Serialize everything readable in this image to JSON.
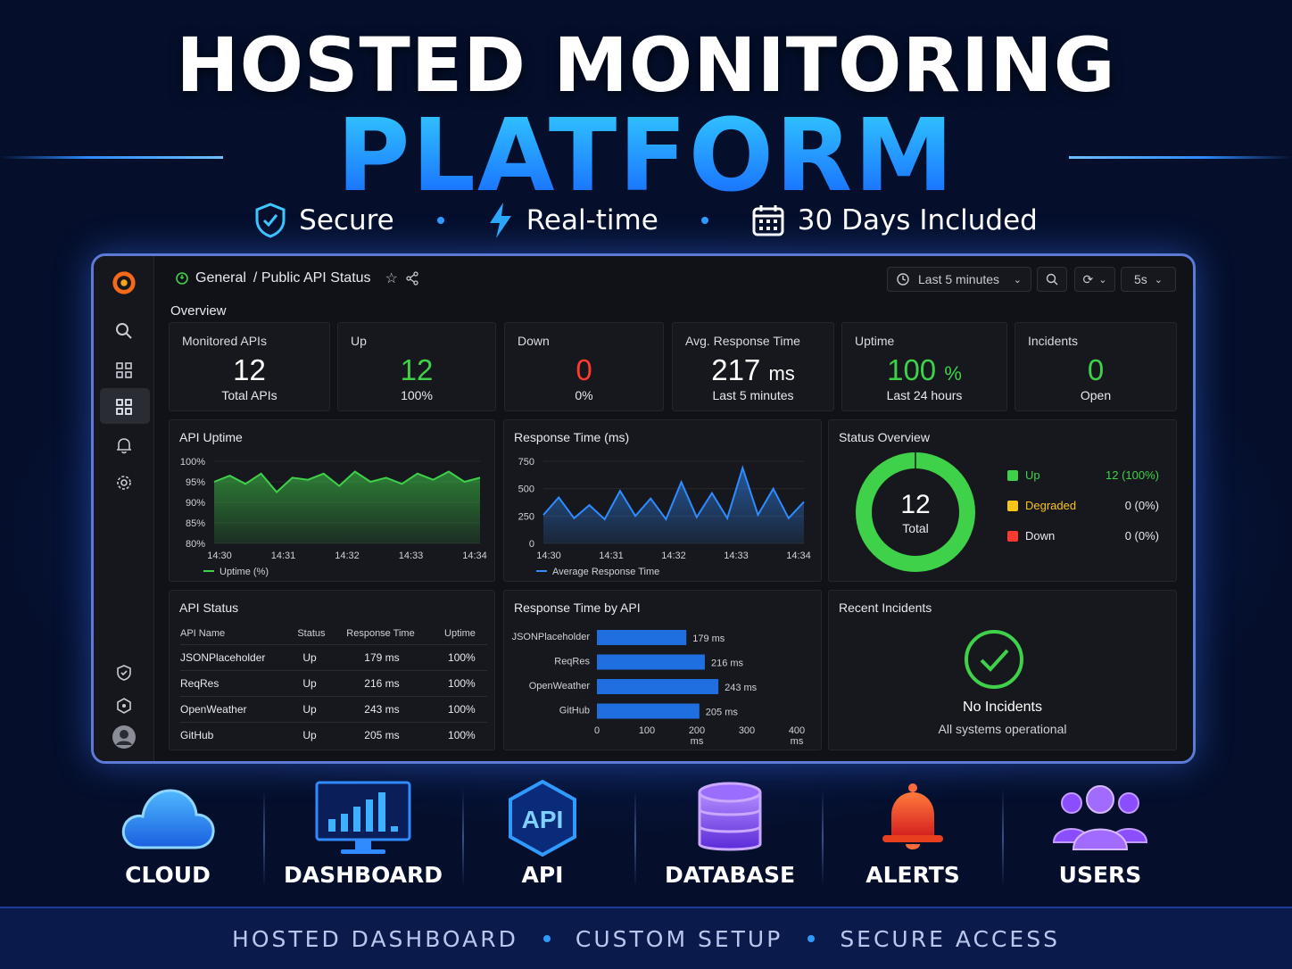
{
  "hero": {
    "title_line1": "HOSTED MONITORING",
    "title_line2": "PLATFORM",
    "features": [
      "Secure",
      "Real-time",
      "30 Days Included"
    ]
  },
  "dashboard": {
    "breadcrumb": {
      "folder": "General",
      "title": "/ Public API Status"
    },
    "time_range": "Last 5 minutes",
    "refresh": "5s",
    "overview_label": "Overview",
    "stats": [
      {
        "label": "Monitored APIs",
        "value": "12",
        "unit": "",
        "sub": "Total APIs",
        "color": "#ffffff"
      },
      {
        "label": "Up",
        "value": "12",
        "unit": "",
        "sub": "100%",
        "color": "#3fd14a"
      },
      {
        "label": "Down",
        "value": "0",
        "unit": "",
        "sub": "0%",
        "color": "#ff3b2f"
      },
      {
        "label": "Avg. Response Time",
        "value": "217",
        "unit": "ms",
        "sub": "Last 5 minutes",
        "color": "#ffffff"
      },
      {
        "label": "Uptime",
        "value": "100",
        "unit": "%",
        "sub": "Last 24 hours",
        "color": "#3fd14a"
      },
      {
        "label": "Incidents",
        "value": "0",
        "unit": "",
        "sub": "Open",
        "color": "#3fd14a"
      }
    ],
    "uptime_panel": {
      "title": "API Uptime",
      "legend": "Uptime (%)",
      "y_ticks": [
        "100%",
        "95%",
        "90%",
        "85%",
        "80%"
      ],
      "x_ticks": [
        "14:30",
        "14:31",
        "14:32",
        "14:33",
        "14:34"
      ]
    },
    "response_panel": {
      "title": "Response Time (ms)",
      "legend": "Average Response Time",
      "y_ticks": [
        "750",
        "500",
        "250",
        "0"
      ],
      "x_ticks": [
        "14:30",
        "14:31",
        "14:32",
        "14:33",
        "14:34"
      ]
    },
    "status_panel": {
      "title": "Status Overview",
      "center_value": "12",
      "center_label": "Total",
      "items": [
        {
          "name": "Up",
          "value": "12 (100%)",
          "color": "#3fd14a"
        },
        {
          "name": "Degraded",
          "value": "0 (0%)",
          "color": "#f5c518"
        },
        {
          "name": "Down",
          "value": "0 (0%)",
          "color": "#ff3b2f"
        }
      ]
    },
    "table_panel": {
      "title": "API Status",
      "columns": [
        "API Name",
        "Status",
        "Response Time",
        "Uptime"
      ],
      "rows": [
        [
          "JSONPlaceholder",
          "Up",
          "179 ms",
          "100%"
        ],
        [
          "ReqRes",
          "Up",
          "216 ms",
          "100%"
        ],
        [
          "OpenWeather",
          "Up",
          "243 ms",
          "100%"
        ],
        [
          "GitHub",
          "Up",
          "205 ms",
          "100%"
        ]
      ]
    },
    "bar_panel": {
      "title": "Response Time by API",
      "x_ticks": [
        "0",
        "100",
        "200",
        "300",
        "400"
      ],
      "x_unit": "ms"
    },
    "incidents_panel": {
      "title": "Recent Incidents",
      "message": "No Incidents",
      "sub": "All systems operational"
    }
  },
  "chart_data": [
    {
      "type": "area",
      "title": "API Uptime",
      "ylabel": "",
      "series": [
        {
          "name": "Uptime (%)",
          "color": "#3fd14a",
          "x": [
            "14:30:00",
            "14:30:15",
            "14:30:30",
            "14:30:45",
            "14:31:00",
            "14:31:15",
            "14:31:30",
            "14:31:45",
            "14:32:00",
            "14:32:15",
            "14:32:30",
            "14:32:45",
            "14:33:00",
            "14:33:15",
            "14:33:30",
            "14:33:45",
            "14:34:00",
            "14:34:15"
          ],
          "values": [
            95,
            96.5,
            94.5,
            97,
            92.5,
            96,
            95.5,
            97,
            94,
            97.5,
            95,
            96,
            94.5,
            97,
            95.5,
            97.5,
            95,
            96
          ]
        }
      ],
      "ylim": [
        80,
        100
      ]
    },
    {
      "type": "area",
      "title": "Response Time (ms)",
      "series": [
        {
          "name": "Average Response Time",
          "color": "#2f8bff",
          "x": [
            "14:30:00",
            "14:30:15",
            "14:30:30",
            "14:30:45",
            "14:31:00",
            "14:31:15",
            "14:31:30",
            "14:31:45",
            "14:32:00",
            "14:32:15",
            "14:32:30",
            "14:32:45",
            "14:33:00",
            "14:33:15",
            "14:33:30",
            "14:33:45",
            "14:34:00",
            "14:34:15"
          ],
          "values": [
            260,
            420,
            230,
            350,
            220,
            480,
            250,
            410,
            220,
            560,
            240,
            460,
            230,
            690,
            260,
            500,
            230,
            380
          ]
        }
      ],
      "ylim": [
        0,
        750
      ]
    },
    {
      "type": "pie",
      "title": "Status Overview",
      "categories": [
        "Up",
        "Degraded",
        "Down"
      ],
      "values": [
        12,
        0,
        0
      ]
    },
    {
      "type": "bar",
      "title": "Response Time by API",
      "categories": [
        "JSONPlaceholder",
        "ReqRes",
        "OpenWeather",
        "GitHub"
      ],
      "values": [
        179,
        216,
        243,
        205
      ],
      "labels": [
        "179 ms",
        "216 ms",
        "243 ms",
        "205 ms"
      ],
      "xlim": [
        0,
        400
      ]
    }
  ],
  "features_row": [
    {
      "label": "CLOUD",
      "icon": "cloud-icon"
    },
    {
      "label": "DASHBOARD",
      "icon": "monitor-chart-icon"
    },
    {
      "label": "API",
      "icon": "api-hexagon-icon"
    },
    {
      "label": "DATABASE",
      "icon": "database-icon"
    },
    {
      "label": "ALERTS",
      "icon": "bell-icon"
    },
    {
      "label": "USERS",
      "icon": "users-icon"
    }
  ],
  "footer": [
    "HOSTED DASHBOARD",
    "CUSTOM SETUP",
    "SECURE ACCESS"
  ]
}
